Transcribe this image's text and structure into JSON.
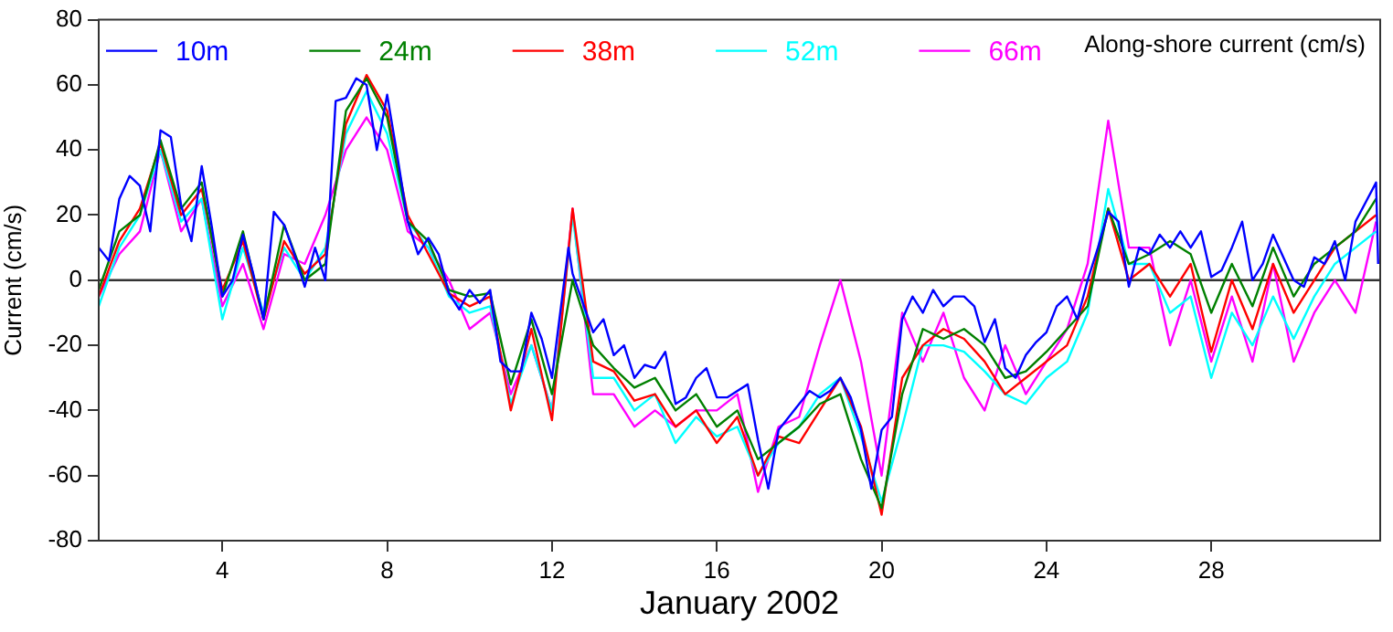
{
  "chart_data": {
    "type": "line",
    "xlabel": "January 2002",
    "ylabel": "Current (cm/s)",
    "annotations": [
      "Along-shore current (cm/s)"
    ],
    "xlim": [
      1,
      32.1
    ],
    "xticks": [
      4,
      8,
      12,
      16,
      20,
      24,
      28
    ],
    "ylim": [
      -80,
      80
    ],
    "yticks": [
      -80,
      -60,
      -40,
      -20,
      0,
      20,
      40,
      60,
      80
    ],
    "grid": false,
    "legend": "top left",
    "marker": "none",
    "line_style": "solid",
    "ref_lines": [
      {
        "axis": "y",
        "value": 0,
        "color": "#333333"
      }
    ],
    "series": [
      {
        "name": "10m",
        "color": "#0000ff",
        "x": [
          1,
          1.25,
          1.5,
          1.75,
          2,
          2.25,
          2.5,
          2.75,
          3,
          3.25,
          3.5,
          3.75,
          4,
          4.25,
          4.5,
          4.75,
          5,
          5.25,
          5.5,
          5.75,
          6,
          6.25,
          6.5,
          6.75,
          7,
          7.25,
          7.5,
          7.75,
          8,
          8.25,
          8.5,
          8.75,
          9,
          9.25,
          9.5,
          9.75,
          10,
          10.25,
          10.5,
          10.75,
          11,
          11.25,
          11.5,
          11.75,
          12,
          12.25,
          12.4,
          12.5,
          12.75,
          13,
          13.25,
          13.5,
          13.75,
          14,
          14.25,
          14.5,
          14.75,
          15,
          15.25,
          15.5,
          15.75,
          16,
          16.25,
          16.5,
          16.75,
          17,
          17.25,
          17.5,
          17.75,
          18,
          18.25,
          18.5,
          18.75,
          19,
          19.25,
          19.5,
          19.75,
          20,
          20.25,
          20.5,
          20.75,
          21,
          21.25,
          21.5,
          21.75,
          22,
          22.25,
          22.5,
          22.75,
          23,
          23.25,
          23.5,
          23.75,
          24,
          24.25,
          24.5,
          24.75,
          25,
          25.25,
          25.5,
          25.75,
          26,
          26.25,
          26.5,
          26.75,
          27,
          27.25,
          27.5,
          27.75,
          28,
          28.25,
          28.5,
          28.75,
          29,
          29.25,
          29.5,
          29.75,
          30,
          30.25,
          30.5,
          30.75,
          31,
          31.25,
          31.5,
          31.75,
          32,
          32.05
        ],
        "values": [
          10,
          6,
          25,
          32,
          29,
          15,
          46,
          44,
          23,
          12,
          35,
          16,
          -5,
          0,
          14,
          2,
          -12,
          21,
          17,
          8,
          -2,
          10,
          0,
          55,
          56,
          62,
          60,
          40,
          57,
          38,
          18,
          8,
          13,
          8,
          -4,
          -9,
          -3,
          -7,
          -3,
          -25,
          -28,
          -28,
          -10,
          -18,
          -30,
          -5,
          10,
          2,
          -7,
          -16,
          -12,
          -23,
          -20,
          -30,
          -26,
          -27,
          -22,
          -38,
          -36,
          -30,
          -27,
          -36,
          -36,
          -34,
          -32,
          -49,
          -64,
          -46,
          -42,
          -38,
          -34,
          -36,
          -34,
          -30,
          -36,
          -46,
          -64,
          -46,
          -42,
          -12,
          -5,
          -10,
          -3,
          -8,
          -5,
          -5,
          -8,
          -19,
          -12,
          -27,
          -30,
          -23,
          -19,
          -16,
          -8,
          -5,
          -12,
          0,
          10,
          21,
          18,
          -2,
          10,
          8,
          14,
          10,
          15,
          10,
          15,
          1,
          3,
          10,
          18,
          0,
          5,
          14,
          7,
          0,
          -2,
          7,
          5,
          12,
          0,
          18,
          24,
          30,
          5
        ]
      },
      {
        "name": "24m",
        "color": "#008000",
        "x": [
          1,
          1.5,
          2,
          2.5,
          3,
          3.5,
          4,
          4.5,
          5,
          5.5,
          6,
          6.5,
          7,
          7.5,
          8,
          8.5,
          9,
          9.5,
          10,
          10.5,
          11,
          11.5,
          12,
          12.5,
          13,
          13.5,
          14,
          14.5,
          15,
          15.5,
          16,
          16.5,
          17,
          17.5,
          18,
          18.5,
          19,
          19.5,
          20,
          20.5,
          21,
          21.5,
          22,
          22.5,
          23,
          23.5,
          24,
          24.5,
          25,
          25.5,
          26,
          26.5,
          27,
          27.5,
          28,
          28.5,
          29,
          29.5,
          30,
          30.5,
          31,
          31.5,
          32
        ],
        "values": [
          -3,
          15,
          20,
          43,
          22,
          30,
          -5,
          15,
          -12,
          17,
          0,
          5,
          52,
          62,
          50,
          18,
          12,
          -3,
          -5,
          -4,
          -32,
          -12,
          -35,
          0,
          -20,
          -27,
          -33,
          -30,
          -40,
          -35,
          -45,
          -40,
          -55,
          -50,
          -45,
          -38,
          -35,
          -55,
          -70,
          -35,
          -15,
          -18,
          -15,
          -20,
          -30,
          -28,
          -22,
          -15,
          -8,
          22,
          5,
          8,
          12,
          8,
          -10,
          5,
          -8,
          10,
          -5,
          5,
          10,
          15,
          25
        ]
      },
      {
        "name": "38m",
        "color": "#ff0000",
        "x": [
          1,
          1.5,
          2,
          2.5,
          3,
          3.5,
          4,
          4.5,
          5,
          5.5,
          6,
          6.5,
          7,
          7.5,
          8,
          8.5,
          9,
          9.5,
          10,
          10.5,
          11,
          11.5,
          12,
          12.5,
          13,
          13.5,
          14,
          14.5,
          15,
          15.5,
          16,
          16.5,
          17,
          17.5,
          18,
          18.5,
          19,
          19.5,
          20,
          20.5,
          21,
          21.5,
          22,
          22.5,
          23,
          23.5,
          24,
          24.5,
          25,
          25.5,
          26,
          26.5,
          27,
          27.5,
          28,
          28.5,
          29,
          29.5,
          30,
          30.5,
          31,
          31.5,
          32
        ],
        "values": [
          -5,
          12,
          22,
          42,
          20,
          28,
          -3,
          12,
          -12,
          12,
          2,
          8,
          48,
          63,
          52,
          20,
          8,
          -4,
          -8,
          -5,
          -40,
          -15,
          -43,
          22,
          -25,
          -28,
          -37,
          -35,
          -45,
          -40,
          -50,
          -42,
          -60,
          -48,
          -50,
          -40,
          -30,
          -45,
          -72,
          -30,
          -20,
          -15,
          -18,
          -25,
          -35,
          -30,
          -25,
          -20,
          -5,
          22,
          0,
          5,
          -5,
          5,
          -22,
          0,
          -15,
          5,
          -10,
          0,
          10,
          15,
          20
        ]
      },
      {
        "name": "52m",
        "color": "#00ffff",
        "x": [
          1,
          1.5,
          2,
          2.5,
          3,
          3.5,
          4,
          4.5,
          5,
          5.5,
          6,
          6.5,
          7,
          7.5,
          8,
          8.5,
          9,
          9.5,
          10,
          10.5,
          11,
          11.5,
          12,
          12.5,
          13,
          13.5,
          14,
          14.5,
          15,
          15.5,
          16,
          16.5,
          17,
          17.5,
          18,
          18.5,
          19,
          19.5,
          20,
          20.5,
          21,
          21.5,
          22,
          22.5,
          23,
          23.5,
          24,
          24.5,
          25,
          25.5,
          26,
          26.5,
          27,
          27.5,
          28,
          28.5,
          29,
          29.5,
          30,
          30.5,
          31,
          31.5,
          32
        ],
        "values": [
          -8,
          10,
          20,
          40,
          18,
          25,
          -12,
          10,
          -10,
          10,
          0,
          10,
          45,
          58,
          45,
          18,
          10,
          -5,
          -10,
          -8,
          -38,
          -20,
          -40,
          20,
          -30,
          -30,
          -40,
          -35,
          -50,
          -42,
          -48,
          -45,
          -60,
          -50,
          -45,
          -35,
          -30,
          -48,
          -68,
          -45,
          -20,
          -20,
          -22,
          -28,
          -35,
          -38,
          -30,
          -25,
          -10,
          28,
          5,
          5,
          -10,
          -5,
          -30,
          -10,
          -20,
          -5,
          -18,
          -5,
          5,
          10,
          15
        ]
      },
      {
        "name": "66m",
        "color": "#ff00ff",
        "x": [
          1,
          1.5,
          2,
          2.5,
          3,
          3.5,
          4,
          4.5,
          5,
          5.5,
          6,
          6.5,
          7,
          7.5,
          8,
          8.5,
          9,
          9.5,
          10,
          10.5,
          11,
          11.5,
          12,
          12.5,
          13,
          13.5,
          14,
          14.5,
          15,
          15.5,
          16,
          16.5,
          17,
          17.5,
          18,
          18.5,
          19,
          19.5,
          20,
          20.5,
          21,
          21.5,
          22,
          22.5,
          23,
          23.5,
          24,
          24.5,
          25,
          25.5,
          26,
          26.5,
          27,
          27.5,
          28,
          28.5,
          29,
          29.5,
          30,
          30.5,
          31,
          31.5,
          32
        ],
        "values": [
          -5,
          8,
          15,
          40,
          15,
          25,
          -8,
          5,
          -15,
          8,
          5,
          20,
          40,
          50,
          40,
          15,
          10,
          0,
          -15,
          -10,
          -35,
          -20,
          -40,
          22,
          -35,
          -35,
          -45,
          -40,
          -45,
          -40,
          -40,
          -35,
          -65,
          -45,
          -42,
          -20,
          0,
          -25,
          -60,
          -10,
          -25,
          -10,
          -30,
          -40,
          -20,
          -35,
          -25,
          -15,
          5,
          49,
          10,
          10,
          -20,
          0,
          -25,
          -5,
          -25,
          5,
          -25,
          -10,
          0,
          -10,
          18
        ]
      }
    ]
  }
}
